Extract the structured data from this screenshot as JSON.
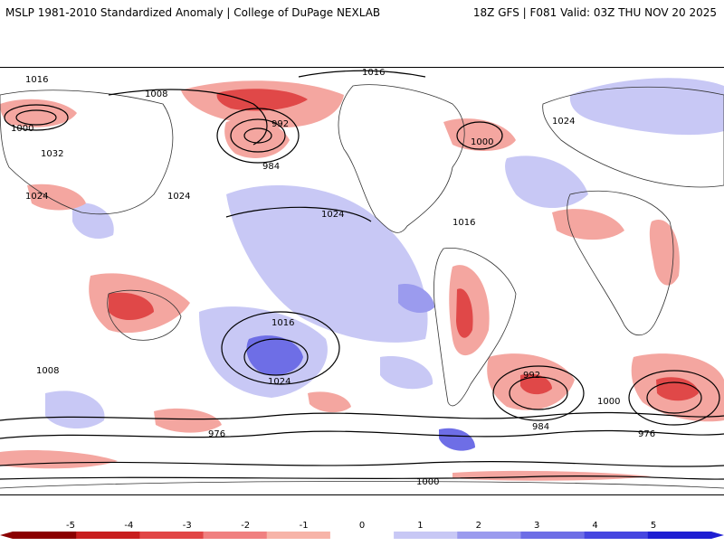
{
  "header": {
    "title_left": "MSLP 1981-2010 Standardized Anomaly | College of DuPage NEXLAB",
    "title_right": "18Z GFS | F081 Valid: 03Z THU NOV 20 2025"
  },
  "colorbar": {
    "ticks": [
      "-5",
      "-4",
      "-3",
      "-2",
      "-1",
      "0",
      "1",
      "2",
      "3",
      "4",
      "5"
    ],
    "colors": [
      "#8b0000",
      "#c81e1e",
      "#e14646",
      "#f08080",
      "#f7b4a8",
      "#ffffff",
      "#c8c8f5",
      "#9b9bee",
      "#6e6ee6",
      "#4646e0",
      "#1e1ed2"
    ]
  },
  "map": {
    "isobar_labels": [
      "1016",
      "1008",
      "1000",
      "992",
      "984",
      "976",
      "1024",
      "1032"
    ],
    "anomaly_colors": {
      "negative_strong": "#e04848",
      "negative_weak": "#f4a6a0",
      "positive_weak": "#c8c8f5",
      "positive_strong": "#6464e6"
    }
  }
}
